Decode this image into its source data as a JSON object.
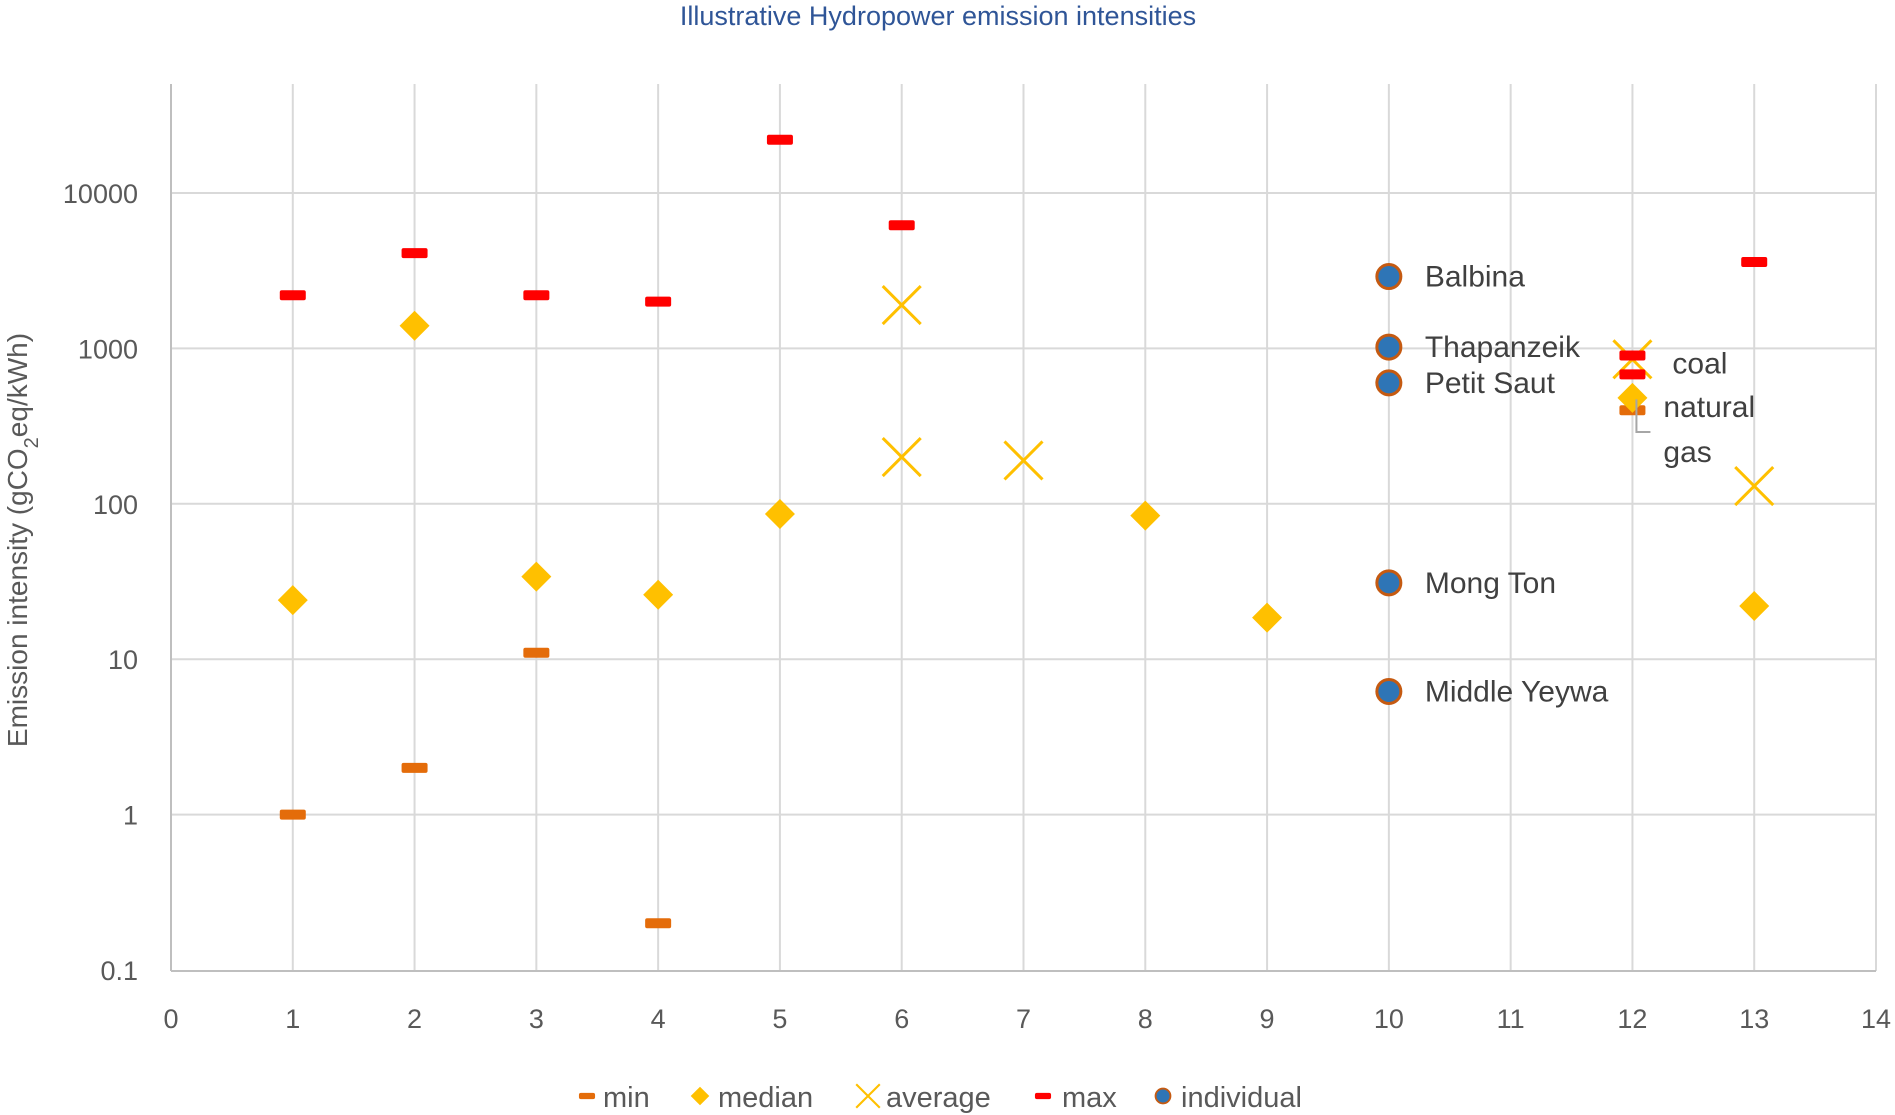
{
  "chart_data": {
    "type": "scatter",
    "title": "Illustrative Hydropower emission intensities",
    "ylabel_prefix": "Emission intensity (gCO",
    "ylabel_sub": "2",
    "ylabel_suffix": "eq/kWh)",
    "xlabel": "",
    "xlim": [
      0,
      14
    ],
    "ylim": [
      0.1,
      50000
    ],
    "yscale": "log",
    "grid": true,
    "legend_position": "bottom",
    "x_ticks": [
      "0",
      "1",
      "2",
      "3",
      "4",
      "5",
      "6",
      "7",
      "8",
      "9",
      "10",
      "11",
      "12",
      "13",
      "14"
    ],
    "y_ticks": [
      {
        "value": 0.1,
        "label": "0.1"
      },
      {
        "value": 1,
        "label": "1"
      },
      {
        "value": 10,
        "label": "10"
      },
      {
        "value": 100,
        "label": "100"
      },
      {
        "value": 1000,
        "label": "1000"
      },
      {
        "value": 10000,
        "label": "10000"
      }
    ],
    "series": [
      {
        "name": "min",
        "marker": "dash",
        "color": "#E46C0A",
        "points": [
          {
            "x": 1,
            "y": 1
          },
          {
            "x": 2,
            "y": 2
          },
          {
            "x": 3,
            "y": 11
          },
          {
            "x": 4,
            "y": 0.2
          },
          {
            "x": 12,
            "y": 400
          }
        ]
      },
      {
        "name": "median",
        "marker": "diamond",
        "color": "#FFC000",
        "points": [
          {
            "x": 1,
            "y": 24
          },
          {
            "x": 2,
            "y": 1400
          },
          {
            "x": 3,
            "y": 34
          },
          {
            "x": 4,
            "y": 26
          },
          {
            "x": 5,
            "y": 86
          },
          {
            "x": 8,
            "y": 84
          },
          {
            "x": 9,
            "y": 18.5
          },
          {
            "x": 12,
            "y": 480
          },
          {
            "x": 13,
            "y": 22
          }
        ]
      },
      {
        "name": "average",
        "marker": "x",
        "color": "#FFC000",
        "points": [
          {
            "x": 6,
            "y": 1900
          },
          {
            "x": 6,
            "y": 200
          },
          {
            "x": 7,
            "y": 190
          },
          {
            "x": 12,
            "y": 850
          },
          {
            "x": 13,
            "y": 130
          }
        ]
      },
      {
        "name": "max",
        "marker": "dash",
        "color": "#FF0000",
        "points": [
          {
            "x": 1,
            "y": 2200
          },
          {
            "x": 2,
            "y": 4100
          },
          {
            "x": 3,
            "y": 2200
          },
          {
            "x": 4,
            "y": 2000
          },
          {
            "x": 5,
            "y": 22000
          },
          {
            "x": 6,
            "y": 6200
          },
          {
            "x": 12,
            "y": 900
          },
          {
            "x": 12,
            "y": 680
          },
          {
            "x": 13,
            "y": 3600
          }
        ]
      },
      {
        "name": "individual",
        "marker": "circle",
        "color": "#2E75B6",
        "edge": "#C55A11",
        "points": [
          {
            "x": 10,
            "y": 2900
          },
          {
            "x": 10,
            "y": 1020
          },
          {
            "x": 10,
            "y": 600
          },
          {
            "x": 10,
            "y": 31
          },
          {
            "x": 10,
            "y": 6.2
          }
        ]
      }
    ],
    "annotations": [
      {
        "text": "Balbina",
        "x": 10,
        "y": 2900
      },
      {
        "text": "Thapanzeik",
        "x": 10,
        "y": 1020
      },
      {
        "text": "Petit Saut",
        "x": 10,
        "y": 600
      },
      {
        "text": "Mong Ton",
        "x": 10,
        "y": 31
      },
      {
        "text": "Middle Yeywa",
        "x": 10,
        "y": 6.2
      },
      {
        "text": "coal",
        "x": 12,
        "y": 800
      },
      {
        "text": "natural",
        "x": 12,
        "y": 420
      },
      {
        "text": "gas",
        "x": 12,
        "y": 215
      }
    ],
    "legend_items": [
      {
        "label": "min",
        "marker": "dash",
        "color": "#E46C0A"
      },
      {
        "label": "median",
        "marker": "diamond",
        "color": "#FFC000"
      },
      {
        "label": "average",
        "marker": "x",
        "color": "#FFC000"
      },
      {
        "label": "max",
        "marker": "dash",
        "color": "#FF0000"
      },
      {
        "label": "individual",
        "marker": "circle",
        "color": "#2E75B6",
        "edge": "#C55A11"
      }
    ]
  }
}
